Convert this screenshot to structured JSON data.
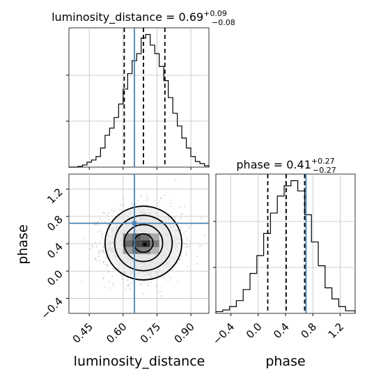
{
  "chart_data": [
    {
      "id": "dist",
      "type": "histogram",
      "title_param": "luminosity_distance",
      "title_median": "0.69",
      "title_err_up": "+0.09",
      "title_err_down": "−0.08",
      "x_range": [
        0.36,
        0.98
      ],
      "bin_edges": [
        0.36,
        0.38,
        0.4,
        0.42,
        0.44,
        0.46,
        0.48,
        0.5,
        0.52,
        0.54,
        0.56,
        0.58,
        0.6,
        0.62,
        0.64,
        0.66,
        0.68,
        0.7,
        0.72,
        0.74,
        0.76,
        0.78,
        0.8,
        0.82,
        0.84,
        0.86,
        0.88,
        0.9,
        0.92,
        0.94,
        0.96,
        0.98
      ],
      "counts": [
        0,
        0,
        1,
        3,
        7,
        10,
        15,
        27,
        45,
        55,
        70,
        89,
        110,
        132,
        150,
        160,
        182,
        187,
        172,
        160,
        142,
        122,
        98,
        76,
        58,
        41,
        27,
        15,
        8,
        5,
        2
      ],
      "quantile_lines": [
        0.605,
        0.69,
        0.785
      ],
      "truth": 0.65,
      "grid_x": [
        0.45,
        0.6,
        0.75,
        0.9
      ]
    },
    {
      "id": "phase",
      "type": "histogram",
      "title_param": "phase",
      "title_median": "0.41",
      "title_err_up": "+0.27",
      "title_err_down": "−0.27",
      "x_range": [
        -0.62,
        1.42
      ],
      "bin_edges": [
        -0.62,
        -0.52,
        -0.42,
        -0.32,
        -0.22,
        -0.12,
        -0.02,
        0.08,
        0.18,
        0.28,
        0.38,
        0.48,
        0.58,
        0.68,
        0.78,
        0.88,
        0.98,
        1.08,
        1.18,
        1.28,
        1.42
      ],
      "counts": [
        2,
        4,
        8,
        15,
        28,
        47,
        68,
        94,
        118,
        138,
        150,
        156,
        144,
        116,
        84,
        56,
        30,
        17,
        8,
        3
      ],
      "quantile_lines": [
        0.14,
        0.41,
        0.68
      ],
      "truth": 0.7,
      "grid_x": [
        -0.4,
        0.0,
        0.4,
        0.8,
        1.2
      ]
    },
    {
      "id": "joint",
      "type": "scatter",
      "x_label": "luminosity_distance",
      "y_label": "phase",
      "x_range": [
        0.36,
        0.98
      ],
      "y_range": [
        -0.62,
        1.42
      ],
      "x_ticks": [
        "0.45",
        "0.60",
        "0.75",
        "0.90"
      ],
      "x_tick_values": [
        0.45,
        0.6,
        0.75,
        0.9
      ],
      "y_ticks": [
        "−0.4",
        "0.0",
        "0.4",
        "0.8",
        "1.2"
      ],
      "y_tick_values": [
        -0.4,
        0.0,
        0.4,
        0.8,
        1.2
      ],
      "mean": [
        0.69,
        0.41
      ],
      "std": [
        0.085,
        0.27
      ],
      "truth": [
        0.65,
        0.7
      ],
      "density_cells": [
        {
          "x": 0.62,
          "y": 0.5,
          "level": 0.55
        },
        {
          "x": 0.66,
          "y": 0.5,
          "level": 0.75
        },
        {
          "x": 0.7,
          "y": 0.5,
          "level": 0.65
        },
        {
          "x": 0.74,
          "y": 0.5,
          "level": 0.4
        },
        {
          "x": 0.62,
          "y": 0.4,
          "level": 0.7
        },
        {
          "x": 0.66,
          "y": 0.4,
          "level": 0.85
        },
        {
          "x": 0.7,
          "y": 0.4,
          "level": 0.95
        },
        {
          "x": 0.74,
          "y": 0.4,
          "level": 0.6
        },
        {
          "x": 0.62,
          "y": 0.3,
          "level": 0.45
        },
        {
          "x": 0.66,
          "y": 0.3,
          "level": 0.65
        },
        {
          "x": 0.7,
          "y": 0.3,
          "level": 0.6
        },
        {
          "x": 0.74,
          "y": 0.3,
          "level": 0.35
        }
      ],
      "contour_sigmas": [
        0.5,
        1.0,
        1.5,
        2.0
      ]
    }
  ],
  "colors": {
    "truth": "#4682b4",
    "line": "#000000",
    "grid": "#c0c0c0",
    "points": "#bdbdbd"
  }
}
